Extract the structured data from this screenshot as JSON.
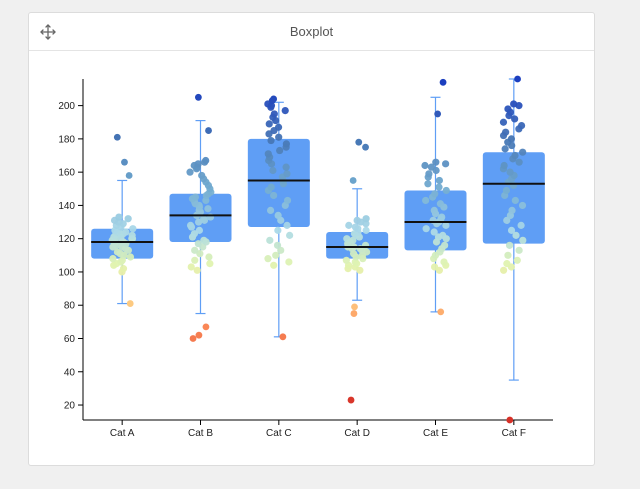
{
  "panel": {
    "title": "Boxplot",
    "move_icon": "move-arrows-icon"
  },
  "colors": {
    "box_fill": "#5f9ef5",
    "median": "#111111",
    "whisker": "#5f9ef5",
    "axis": "#000000",
    "point_scale": [
      "#d73027",
      "#fc8d59",
      "#fee090",
      "#e0f3b0",
      "#abd9e9",
      "#74add1",
      "#4575b4",
      "#1c3fbf"
    ]
  },
  "chart_data": {
    "type": "boxplot",
    "title": "",
    "xlabel": "",
    "ylabel": "",
    "ylim": [
      11,
      216
    ],
    "yticks": [
      20,
      40,
      60,
      80,
      100,
      120,
      140,
      160,
      180,
      200
    ],
    "categories": [
      "Cat A",
      "Cat B",
      "Cat C",
      "Cat D",
      "Cat E",
      "Cat F"
    ],
    "boxes": [
      {
        "category": "Cat A",
        "whisker_low": 81,
        "q1": 108,
        "median": 118,
        "q3": 126,
        "whisker_high": 155,
        "outliers": [
          181,
          166,
          158,
          81
        ]
      },
      {
        "category": "Cat B",
        "whisker_low": 75,
        "q1": 118,
        "median": 134,
        "q3": 147,
        "whisker_high": 191,
        "outliers": [
          205,
          185,
          67,
          62,
          60
        ]
      },
      {
        "category": "Cat C",
        "whisker_low": 61,
        "q1": 127,
        "median": 155,
        "q3": 180,
        "whisker_high": 202,
        "outliers": [
          204,
          203,
          61
        ]
      },
      {
        "category": "Cat D",
        "whisker_low": 83,
        "q1": 108,
        "median": 115,
        "q3": 124,
        "whisker_high": 150,
        "outliers": [
          178,
          175,
          155,
          79,
          75,
          23
        ]
      },
      {
        "category": "Cat E",
        "whisker_low": 76,
        "q1": 113,
        "median": 130,
        "q3": 149,
        "whisker_high": 205,
        "outliers": [
          214,
          195,
          76
        ]
      },
      {
        "category": "Cat F",
        "whisker_low": 35,
        "q1": 117,
        "median": 153,
        "q3": 172,
        "whisker_high": 216,
        "outliers": [
          216,
          11
        ]
      }
    ],
    "points": [
      {
        "category": "Cat A",
        "values": [
          100,
          102,
          104,
          105,
          106,
          107,
          108,
          109,
          110,
          111,
          112,
          113,
          114,
          115,
          115,
          116,
          117,
          117,
          118,
          118,
          119,
          119,
          120,
          120,
          121,
          121,
          122,
          122,
          123,
          123,
          124,
          124,
          125,
          126,
          127,
          128,
          129,
          130,
          131,
          132,
          133
        ]
      },
      {
        "category": "Cat B",
        "values": [
          101,
          103,
          105,
          107,
          109,
          111,
          113,
          115,
          117,
          118,
          119,
          121,
          123,
          125,
          127,
          128,
          130,
          131,
          132,
          133,
          134,
          135,
          136,
          137,
          138,
          139,
          140,
          141,
          142,
          143,
          144,
          145,
          146,
          147,
          148,
          150,
          152,
          154,
          156,
          158,
          160,
          162,
          163,
          164,
          165,
          166,
          167
        ]
      },
      {
        "category": "Cat C",
        "values": [
          104,
          106,
          108,
          110,
          113,
          116,
          119,
          122,
          125,
          128,
          131,
          134,
          137,
          140,
          143,
          146,
          149,
          151,
          153,
          155,
          157,
          159,
          161,
          163,
          165,
          167,
          169,
          171,
          173,
          175,
          177,
          179,
          181,
          183,
          185,
          187,
          189,
          191,
          193,
          195,
          197,
          199,
          200,
          201
        ]
      },
      {
        "category": "Cat D",
        "values": [
          101,
          102,
          103,
          104,
          105,
          106,
          107,
          108,
          109,
          110,
          111,
          112,
          113,
          114,
          114,
          115,
          115,
          116,
          116,
          117,
          118,
          119,
          120,
          121,
          122,
          123,
          124,
          125,
          126,
          127,
          128,
          129,
          130,
          131,
          132
        ]
      },
      {
        "category": "Cat E",
        "values": [
          101,
          103,
          104,
          106,
          108,
          110,
          112,
          114,
          116,
          118,
          120,
          121,
          122,
          124,
          126,
          128,
          129,
          130,
          131,
          132,
          133,
          135,
          137,
          139,
          141,
          143,
          145,
          147,
          149,
          151,
          153,
          155,
          157,
          159,
          161,
          163,
          164,
          165,
          166
        ]
      },
      {
        "category": "Cat F",
        "values": [
          101,
          103,
          105,
          107,
          110,
          113,
          116,
          119,
          122,
          125,
          128,
          131,
          134,
          137,
          140,
          143,
          146,
          149,
          152,
          154,
          156,
          158,
          160,
          162,
          164,
          166,
          168,
          170,
          172,
          174,
          176,
          178,
          180,
          182,
          184,
          186,
          188,
          190,
          192,
          194,
          196,
          198,
          200,
          201
        ]
      }
    ]
  }
}
